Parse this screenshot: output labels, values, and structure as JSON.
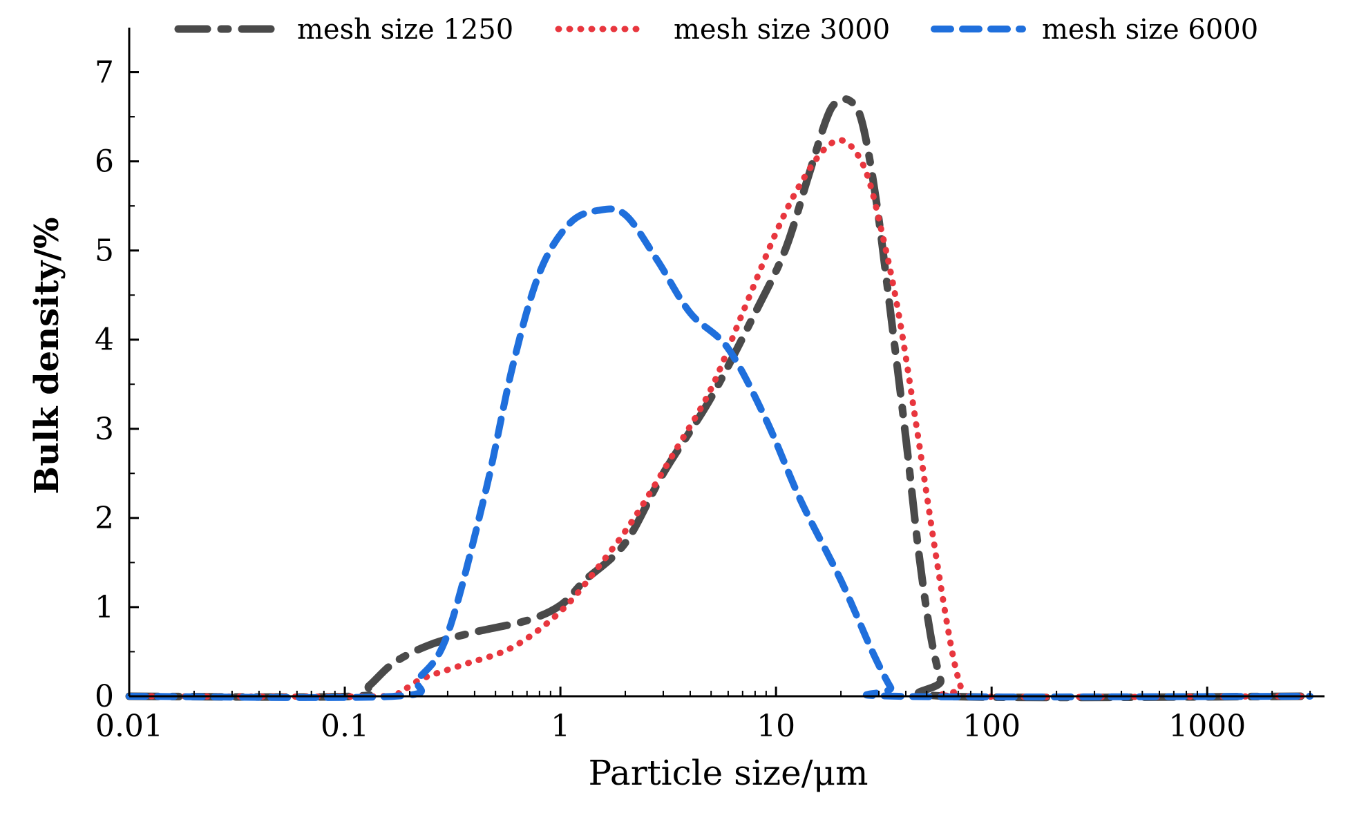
{
  "chart_data": {
    "type": "line",
    "title": "",
    "xlabel": "Particle size/μm",
    "ylabel": "Bulk density/%",
    "xscale": "log",
    "xlim": [
      0.01,
      3500
    ],
    "ylim": [
      0,
      7.5
    ],
    "xticks": [
      0.01,
      0.1,
      1,
      10,
      100,
      1000
    ],
    "xtick_labels": [
      "0.01",
      "0.1",
      "1",
      "10",
      "100",
      "1000"
    ],
    "yticks": [
      0,
      1,
      2,
      3,
      4,
      5,
      6,
      7
    ],
    "ytick_labels": [
      "0",
      "1",
      "2",
      "3",
      "4",
      "5",
      "6",
      "7"
    ],
    "legend_position": "top",
    "series": [
      {
        "name": "mesh size 1250",
        "color": "#4a4a4a",
        "style": "dash-dot",
        "points": [
          [
            0.01,
            0
          ],
          [
            0.11,
            0
          ],
          [
            0.13,
            0.12
          ],
          [
            0.17,
            0.38
          ],
          [
            0.25,
            0.58
          ],
          [
            0.4,
            0.72
          ],
          [
            0.7,
            0.85
          ],
          [
            1.0,
            1.02
          ],
          [
            1.3,
            1.3
          ],
          [
            2.0,
            1.72
          ],
          [
            3.0,
            2.5
          ],
          [
            5.0,
            3.35
          ],
          [
            8.0,
            4.3
          ],
          [
            11,
            5.0
          ],
          [
            14,
            5.8
          ],
          [
            17,
            6.45
          ],
          [
            19,
            6.66
          ],
          [
            22,
            6.68
          ],
          [
            25,
            6.45
          ],
          [
            29,
            5.6
          ],
          [
            34,
            4.3
          ],
          [
            40,
            2.9
          ],
          [
            46,
            1.6
          ],
          [
            52,
            0.7
          ],
          [
            58,
            0.18
          ],
          [
            62,
            0
          ],
          [
            3000,
            0
          ]
        ]
      },
      {
        "name": "mesh size 3000",
        "color": "#e8363e",
        "style": "dotted",
        "points": [
          [
            0.01,
            0
          ],
          [
            0.14,
            0
          ],
          [
            0.18,
            0.05
          ],
          [
            0.23,
            0.2
          ],
          [
            0.35,
            0.35
          ],
          [
            0.6,
            0.55
          ],
          [
            1.0,
            0.95
          ],
          [
            1.5,
            1.45
          ],
          [
            2.2,
            2.0
          ],
          [
            3.5,
            2.8
          ],
          [
            5.0,
            3.45
          ],
          [
            7.0,
            4.3
          ],
          [
            10,
            5.2
          ],
          [
            13,
            5.75
          ],
          [
            17,
            6.15
          ],
          [
            21,
            6.22
          ],
          [
            26,
            5.9
          ],
          [
            31,
            5.2
          ],
          [
            37,
            4.3
          ],
          [
            45,
            3.0
          ],
          [
            55,
            1.6
          ],
          [
            65,
            0.55
          ],
          [
            72,
            0.1
          ],
          [
            76,
            0
          ],
          [
            3000,
            0
          ]
        ]
      },
      {
        "name": "mesh size 6000",
        "color": "#1f6fdc",
        "style": "dashed",
        "points": [
          [
            0.01,
            0
          ],
          [
            0.17,
            0
          ],
          [
            0.22,
            0.2
          ],
          [
            0.3,
            0.7
          ],
          [
            0.45,
            2.3
          ],
          [
            0.6,
            3.7
          ],
          [
            0.8,
            4.75
          ],
          [
            1.1,
            5.3
          ],
          [
            1.5,
            5.45
          ],
          [
            2.0,
            5.4
          ],
          [
            2.8,
            4.9
          ],
          [
            4.0,
            4.3
          ],
          [
            6.0,
            3.9
          ],
          [
            9.0,
            3.1
          ],
          [
            13,
            2.2
          ],
          [
            20,
            1.3
          ],
          [
            28,
            0.5
          ],
          [
            34,
            0.1
          ],
          [
            37,
            0
          ],
          [
            3000,
            0
          ]
        ]
      }
    ]
  }
}
